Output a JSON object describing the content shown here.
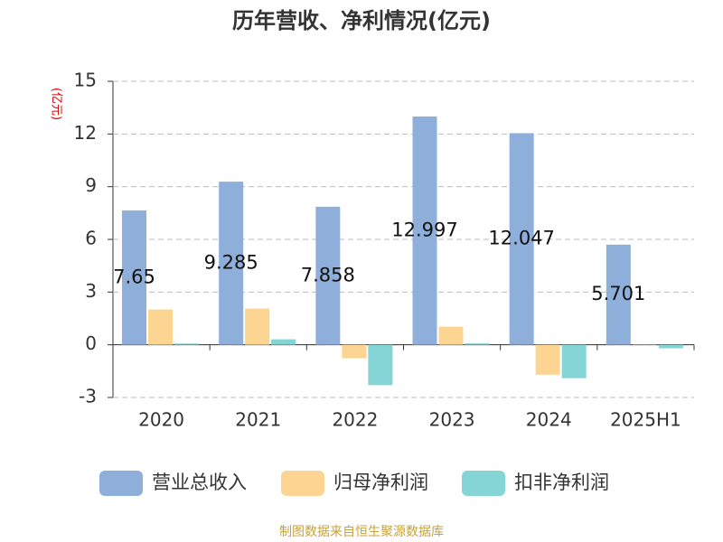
{
  "chart_data": {
    "type": "bar",
    "title": "历年营收、净利情况(亿元)",
    "y_label": "(亿元)",
    "categories": [
      "2020",
      "2021",
      "2022",
      "2023",
      "2024",
      "2025H1"
    ],
    "series": [
      {
        "name": "营业总收入",
        "color": "#8fafdb",
        "values": [
          7.65,
          9.285,
          7.858,
          12.997,
          12.047,
          5.701
        ],
        "show_labels": true
      },
      {
        "name": "归母净利润",
        "color": "#fdd593",
        "values": [
          2.01,
          2.06,
          -0.77,
          1.03,
          -1.7,
          0.02
        ]
      },
      {
        "name": "扣非净利润",
        "color": "#85d5d6",
        "values": [
          0.07,
          0.31,
          -2.3,
          0.08,
          -1.9,
          -0.2
        ]
      }
    ],
    "ylim": [
      -3,
      15
    ],
    "yticks": [
      -3,
      0,
      3,
      6,
      9,
      12,
      15
    ],
    "grid": true,
    "source": "制图数据来自恒生聚源数据库"
  }
}
